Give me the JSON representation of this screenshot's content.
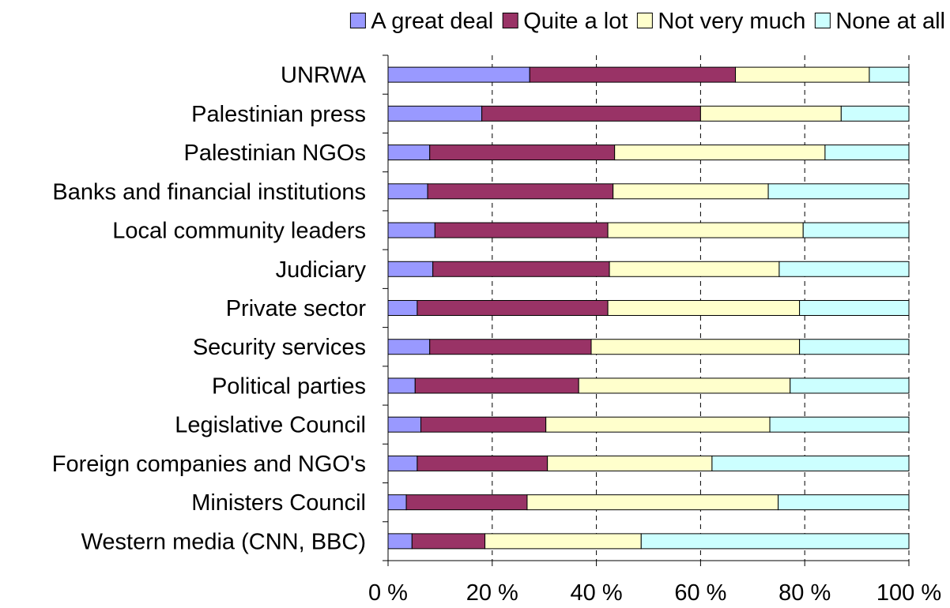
{
  "chart_data": {
    "type": "bar",
    "orientation": "horizontal",
    "stacked": "percent",
    "title": "",
    "xlabel": "",
    "ylabel": "",
    "xlim": [
      0,
      100
    ],
    "x_ticks": [
      0,
      20,
      40,
      60,
      80,
      100
    ],
    "x_tick_labels": [
      "0 %",
      "20 %",
      "40 %",
      "60 %",
      "80 %",
      "100 %"
    ],
    "grid": "vertical dashed",
    "legend_position": "top",
    "categories": [
      "UNRWA",
      "Palestinian press",
      "Palestinian NGOs",
      "Banks and financial institutions",
      "Local community leaders",
      "Judiciary",
      "Private sector",
      "Security services",
      "Political parties",
      "Legislative Council",
      "Foreign companies and NGO's",
      "Ministers Council",
      "Western media (CNN, BBC)"
    ],
    "series": [
      {
        "name": "A great deal",
        "color": "#9999ff",
        "values": [
          27.2,
          18.0,
          8.0,
          7.6,
          9.0,
          8.6,
          5.6,
          8.0,
          5.2,
          6.3,
          5.6,
          3.5,
          4.6
        ]
      },
      {
        "name": "Quite a lot",
        "color": "#993366",
        "values": [
          39.5,
          42.0,
          35.5,
          35.6,
          33.2,
          33.9,
          36.6,
          31.0,
          31.4,
          24.0,
          25.0,
          23.2,
          14.0
        ]
      },
      {
        "name": "Not very much",
        "color": "#ffffcc",
        "values": [
          25.7,
          27.0,
          40.4,
          29.8,
          37.5,
          32.6,
          36.8,
          40.0,
          40.6,
          43.0,
          31.6,
          48.2,
          30.0
        ]
      },
      {
        "name": "None at all",
        "color": "#ccffff",
        "values": [
          7.6,
          13.0,
          16.1,
          27.0,
          20.3,
          24.9,
          21.0,
          21.0,
          22.8,
          26.7,
          37.8,
          25.1,
          51.4
        ]
      }
    ]
  }
}
